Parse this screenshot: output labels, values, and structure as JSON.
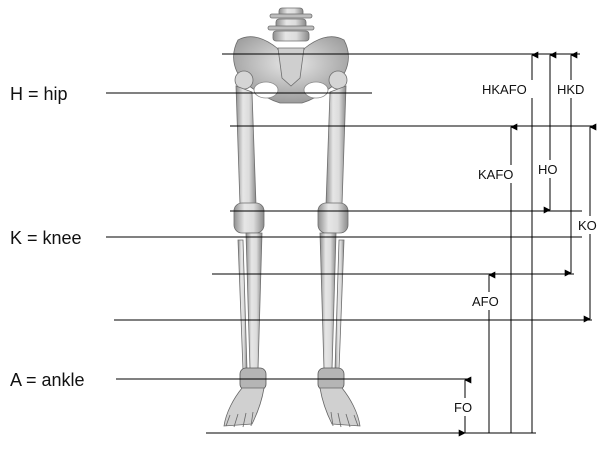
{
  "joint_labels": {
    "hip": "H = hip",
    "knee": "K = knee",
    "ankle": "A = ankle"
  },
  "orthosis_labels": {
    "hkafo": "HKAFO",
    "hkd": "HKD",
    "kafo": "KAFO",
    "ho": "HO",
    "ko": "KO",
    "afo": "AFO",
    "fo": "FO"
  },
  "colors": {
    "line": "#000000",
    "bone": "#d9d9d9",
    "bone_shadow": "#9a9a9a",
    "background": "#ffffff"
  }
}
